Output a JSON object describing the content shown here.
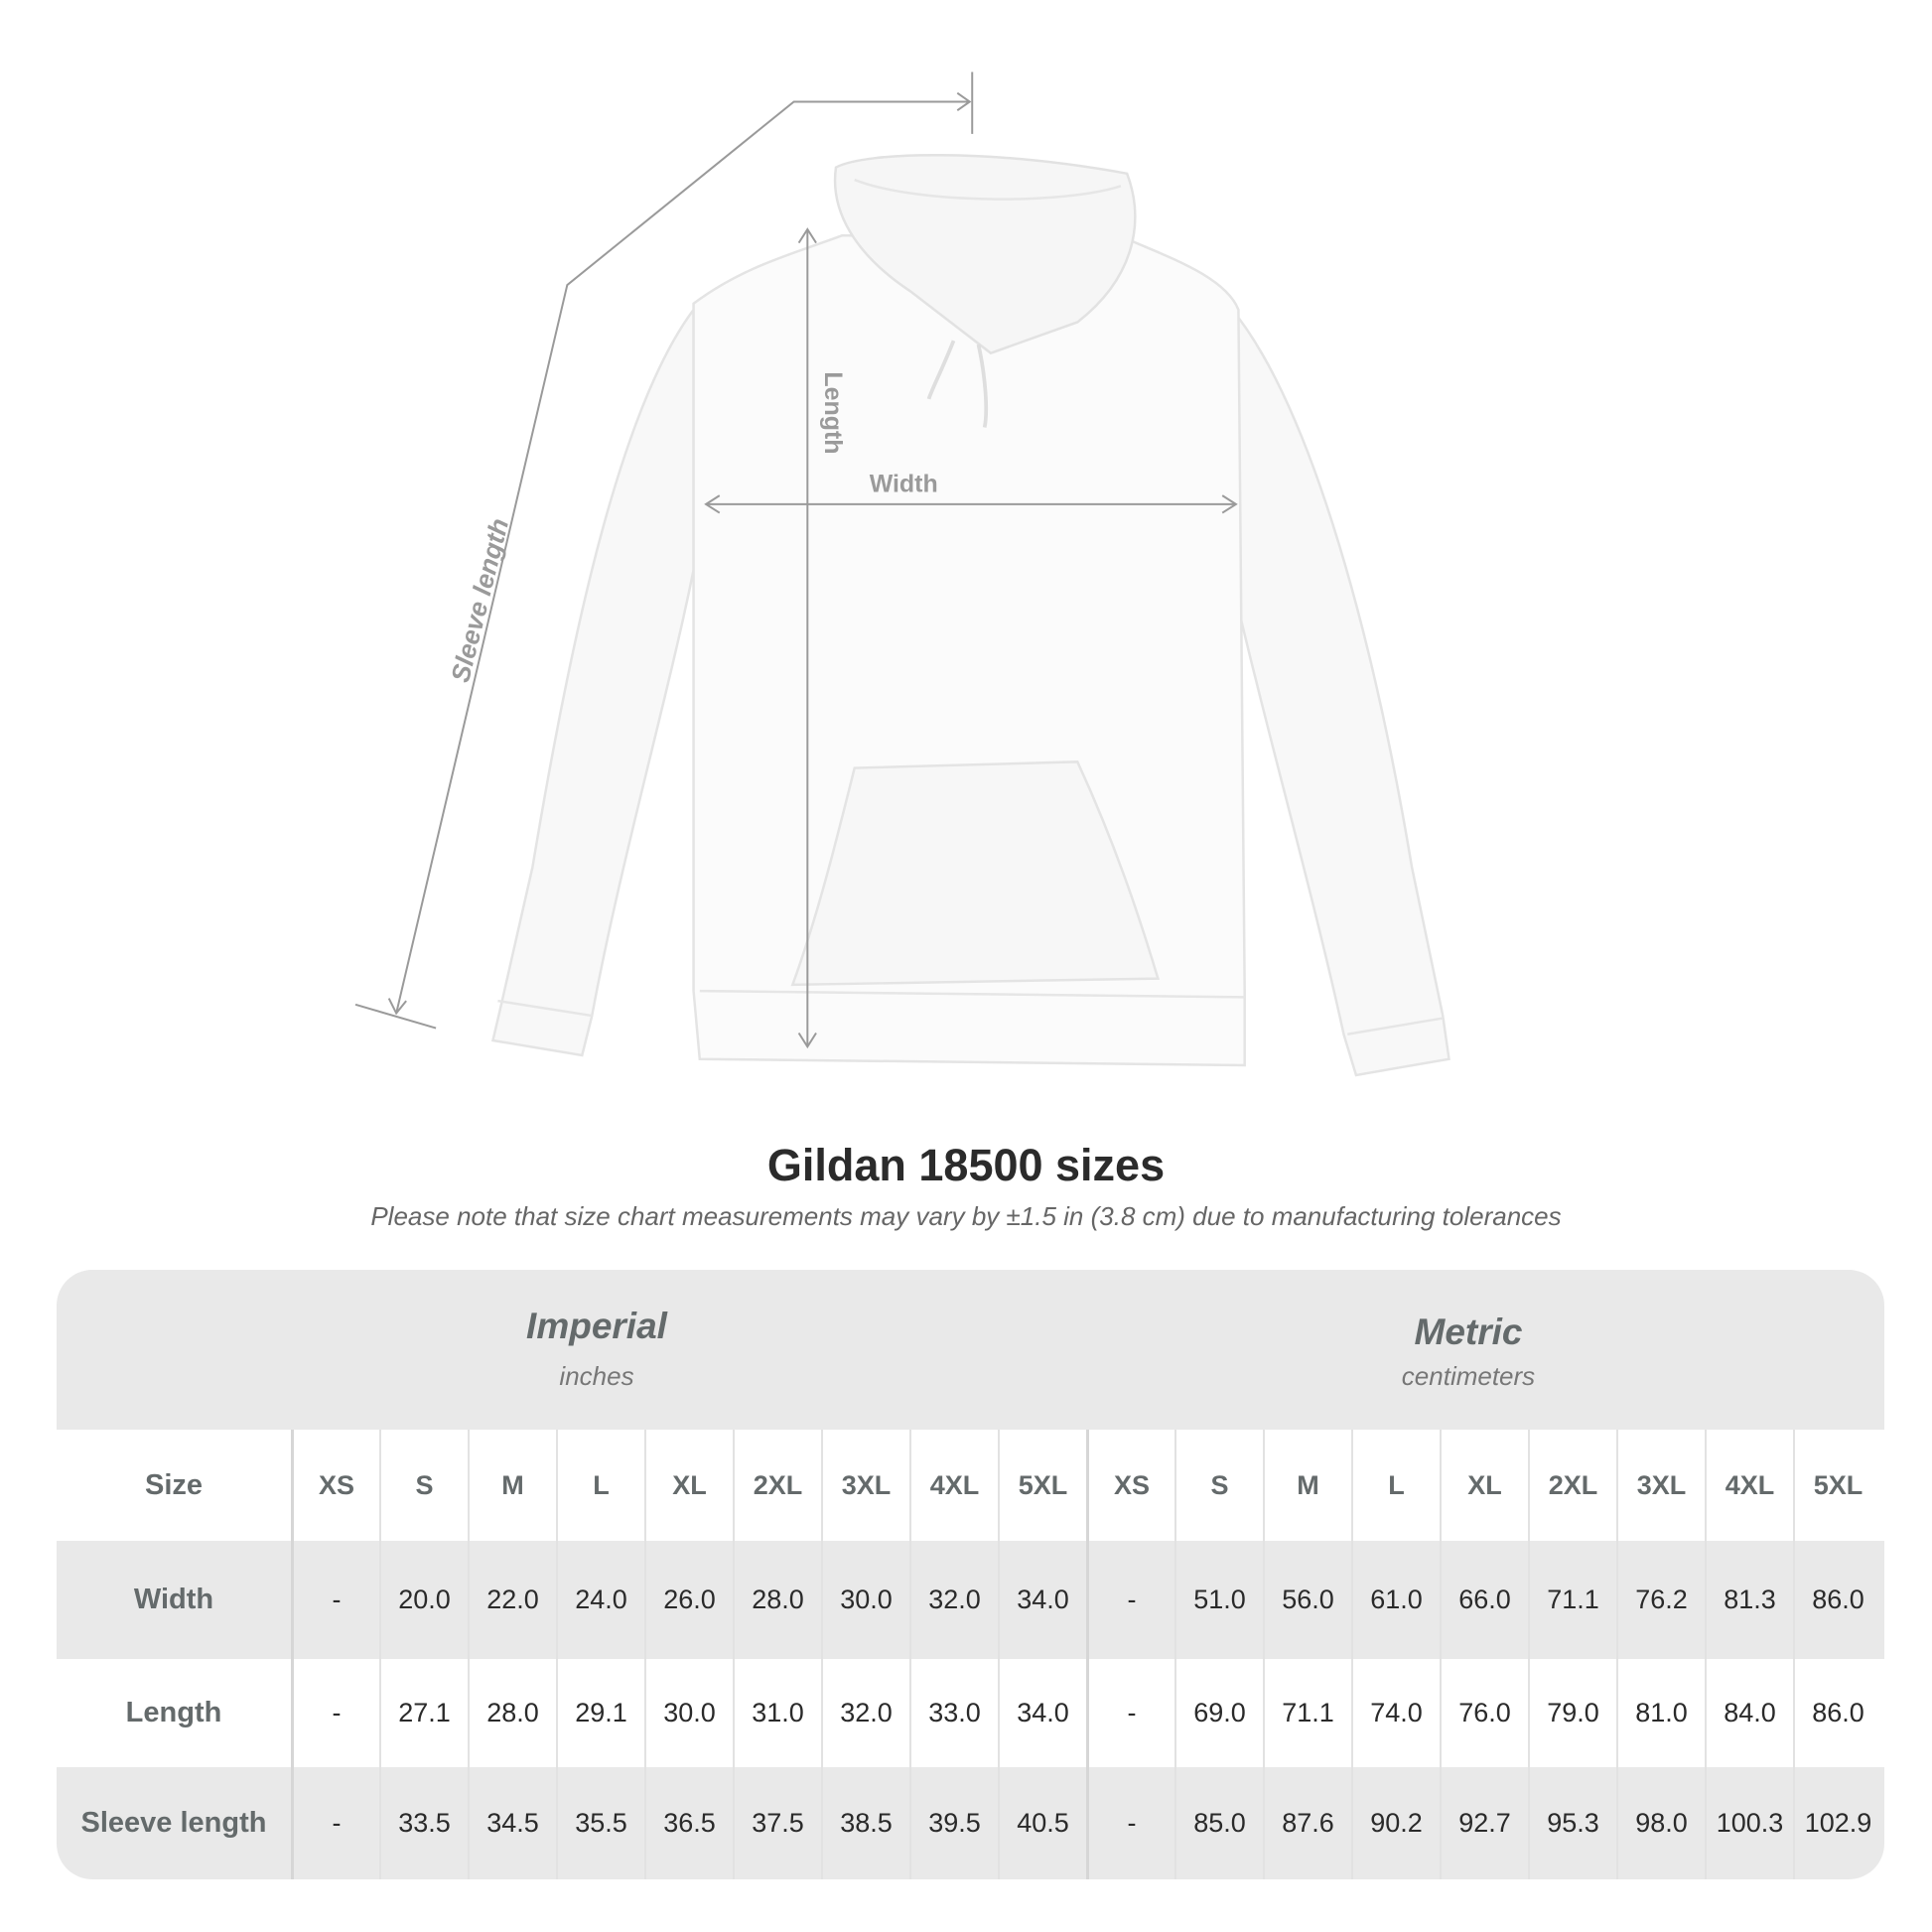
{
  "diagram": {
    "labels": {
      "sleeve": "Sleeve length",
      "length": "Length",
      "width": "Width"
    }
  },
  "title": "Gildan 18500 sizes",
  "note": "Please note that size chart measurements may vary by ±1.5 in (3.8 cm) due to manufacturing tolerances",
  "table": {
    "imperial": {
      "name": "Imperial",
      "unit": "inches"
    },
    "metric": {
      "name": "Metric",
      "unit": "centimeters"
    },
    "header_label": "Size",
    "sizes": [
      "XS",
      "S",
      "M",
      "L",
      "XL",
      "2XL",
      "3XL",
      "4XL",
      "5XL"
    ],
    "rows": [
      {
        "label": "Width",
        "imperial": [
          "-",
          "20.0",
          "22.0",
          "24.0",
          "26.0",
          "28.0",
          "30.0",
          "32.0",
          "34.0"
        ],
        "metric": [
          "-",
          "51.0",
          "56.0",
          "61.0",
          "66.0",
          "71.1",
          "76.2",
          "81.3",
          "86.0"
        ]
      },
      {
        "label": "Length",
        "imperial": [
          "-",
          "27.1",
          "28.0",
          "29.1",
          "30.0",
          "31.0",
          "32.0",
          "33.0",
          "34.0"
        ],
        "metric": [
          "-",
          "69.0",
          "71.1",
          "74.0",
          "76.0",
          "79.0",
          "81.0",
          "84.0",
          "86.0"
        ]
      },
      {
        "label": "Sleeve length",
        "imperial": [
          "-",
          "33.5",
          "34.5",
          "35.5",
          "36.5",
          "37.5",
          "38.5",
          "39.5",
          "40.5"
        ],
        "metric": [
          "-",
          "85.0",
          "87.6",
          "90.2",
          "92.7",
          "95.3",
          "98.0",
          "100.3",
          "102.9"
        ]
      }
    ]
  }
}
